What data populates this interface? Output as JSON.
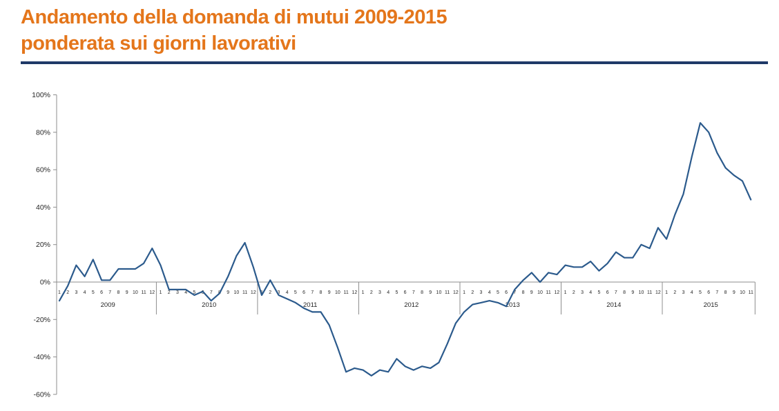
{
  "header": {
    "title_line1": "Andamento della domanda di mutui 2009-2015",
    "title_line2": "ponderata sui giorni lavorativi"
  },
  "colors": {
    "title_orange": "#E4761B",
    "rule_navy": "#1F3968",
    "line_blue": "#2B5A8C",
    "axis_gray": "#8C8C8C",
    "tick_text": "#262626"
  },
  "chart_data": {
    "type": "line",
    "title": "Andamento della domanda di mutui 2009-2015 ponderata sui giorni lavorativi",
    "xlabel": "",
    "ylabel": "",
    "ylim": [
      -60,
      100
    ],
    "grid": "off",
    "legend": "none",
    "y_ticks": [
      {
        "label": "100%",
        "value": 100
      },
      {
        "label": "80%",
        "value": 80
      },
      {
        "label": "60%",
        "value": 60
      },
      {
        "label": "40%",
        "value": 40
      },
      {
        "label": "20%",
        "value": 20
      },
      {
        "label": "0%",
        "value": 0
      },
      {
        "label": "-20%",
        "value": -20
      },
      {
        "label": "-40%",
        "value": -40
      },
      {
        "label": "-60%",
        "value": -60
      }
    ],
    "x_month_labels": [
      "1",
      "2",
      "3",
      "4",
      "5",
      "6",
      "7",
      "8",
      "9",
      "10",
      "11",
      "12"
    ],
    "years": [
      {
        "label": "2009",
        "values": [
          -10,
          -2,
          9,
          3,
          12,
          1,
          1,
          7,
          7,
          7,
          10,
          18
        ]
      },
      {
        "label": "2010",
        "values": [
          9,
          -4,
          -4,
          -4,
          -7,
          -5,
          -10,
          -6,
          3,
          14,
          21,
          8
        ]
      },
      {
        "label": "2011",
        "values": [
          -7,
          1,
          -7,
          -9,
          -11,
          -14,
          -16,
          -16,
          -23,
          -35,
          -48,
          -46
        ]
      },
      {
        "label": "2012",
        "values": [
          -47,
          -50,
          -47,
          -48,
          -41,
          -45,
          -47,
          -45,
          -46,
          -43,
          -33,
          -22
        ]
      },
      {
        "label": "2013",
        "values": [
          -16,
          -12,
          -11,
          -10,
          -11,
          -13,
          -4,
          1,
          5,
          0,
          5,
          4
        ]
      },
      {
        "label": "2014",
        "values": [
          9,
          8,
          8,
          11,
          6,
          10,
          16,
          13,
          13,
          20,
          18,
          29
        ]
      },
      {
        "label": "2015",
        "values": [
          23,
          36,
          47,
          67,
          85,
          80,
          69,
          61,
          57,
          54,
          44
        ]
      }
    ]
  }
}
